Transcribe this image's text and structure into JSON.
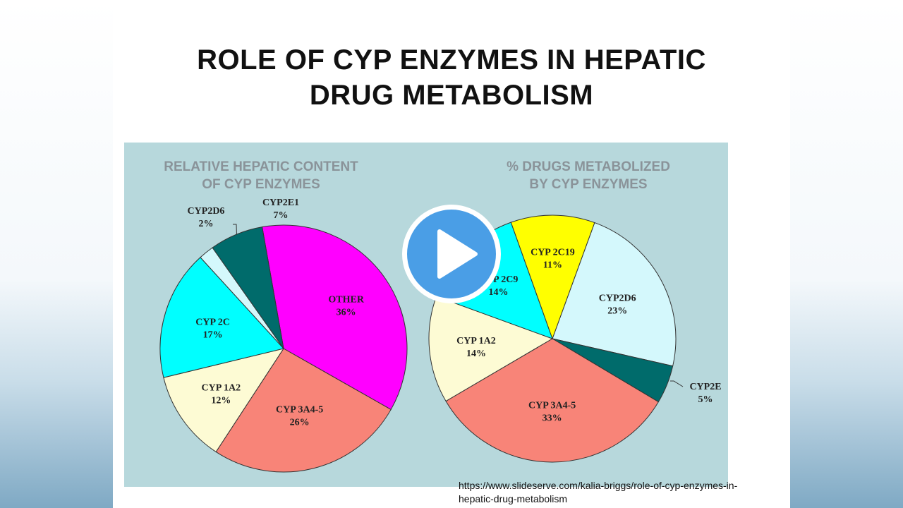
{
  "slide": {
    "title_line1": "ROLE OF CYP ENZYMES IN HEPATIC",
    "title_line2": "DRUG METABOLISM",
    "source_line1": "https://www.slideserve.com/kalia-briggs/role-of-cyp-enzymes-in-",
    "source_line2": "hepatic-drug-metabolism"
  },
  "chart_data": [
    {
      "type": "pie",
      "title_line1": "RELATIVE HEPATIC CONTENT",
      "title_line2": "OF CYP ENZYMES",
      "slices": [
        {
          "label": "OTHER",
          "value": 36,
          "value_label": "36%",
          "color": "#ff00ff"
        },
        {
          "label": "CYP 3A4-5",
          "value": 26,
          "value_label": "26%",
          "color": "#f88478"
        },
        {
          "label": "CYP 1A2",
          "value": 12,
          "value_label": "12%",
          "color": "#fdfbd4"
        },
        {
          "label": "CYP 2C",
          "value": 17,
          "value_label": "17%",
          "color": "#00ffff"
        },
        {
          "label": "CYP2D6",
          "value": 2,
          "value_label": "2%",
          "color": "#d4f8fc"
        },
        {
          "label": "CYP2E1",
          "value": 7,
          "value_label": "7%",
          "color": "#006b6b"
        }
      ]
    },
    {
      "type": "pie",
      "title_line1": "% DRUGS METABOLIZED",
      "title_line2": "BY CYP ENZYMES",
      "slices": [
        {
          "label": "CYP2D6",
          "value": 23,
          "value_label": "23%",
          "color": "#d4f8fc"
        },
        {
          "label": "CYP2E",
          "value": 5,
          "value_label": "5%",
          "color": "#006b6b"
        },
        {
          "label": "CYP 3A4-5",
          "value": 33,
          "value_label": "33%",
          "color": "#f88478"
        },
        {
          "label": "CYP 1A2",
          "value": 14,
          "value_label": "14%",
          "color": "#fdfbd4"
        },
        {
          "label": "CYP 2C9",
          "value": 14,
          "value_label": "14%",
          "color": "#00ffff"
        },
        {
          "label": "CYP 2C19",
          "value": 11,
          "value_label": "11%",
          "color": "#ffff00"
        }
      ]
    }
  ]
}
